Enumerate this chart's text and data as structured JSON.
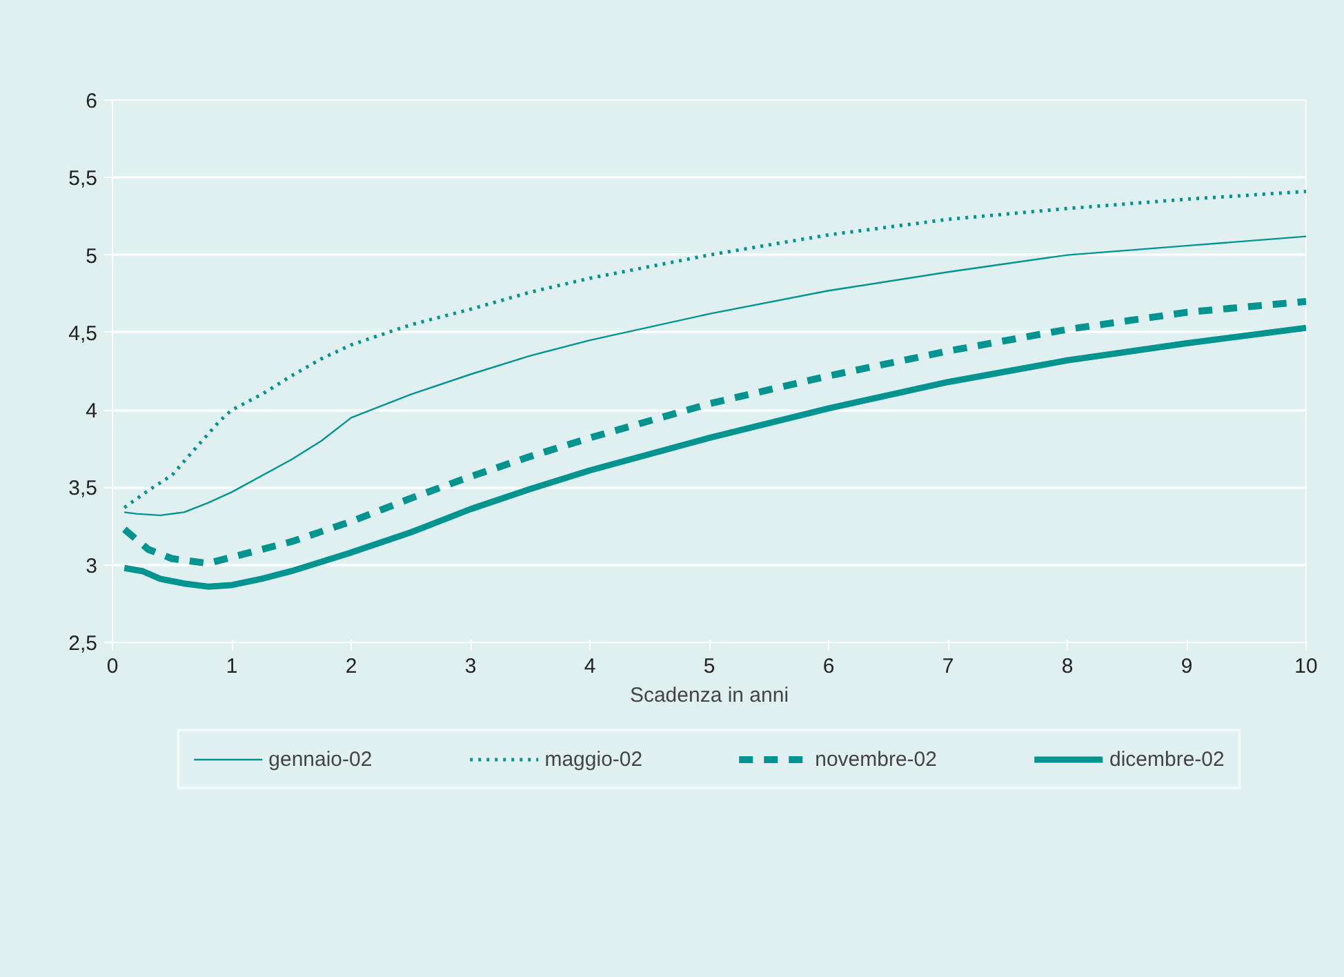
{
  "chart_data": {
    "type": "line",
    "xlabel": "Scadenza in anni",
    "xlim": [
      0,
      10
    ],
    "xticks": [
      0,
      1,
      2,
      3,
      4,
      5,
      6,
      7,
      8,
      9,
      10
    ],
    "ylim": [
      2.5,
      6
    ],
    "yticks": [
      {
        "value": 2.5,
        "label": "2,5"
      },
      3,
      {
        "value": 3.5,
        "label": "3,5"
      },
      4,
      {
        "value": 4.5,
        "label": "4,5"
      },
      5,
      {
        "value": 5.5,
        "label": "5,5"
      },
      6
    ],
    "grid": "y",
    "legend": "bottom",
    "series": [
      {
        "name": "gennaio-02",
        "color": "#009490",
        "line_style": "solid",
        "x": [
          0.1,
          0.2,
          0.4,
          0.6,
          0.8,
          1,
          1.5,
          1.75,
          2,
          2.5,
          3,
          3.5,
          4,
          5,
          6,
          7,
          8,
          9,
          10
        ],
        "values": [
          3.34,
          3.33,
          3.32,
          3.34,
          3.4,
          3.47,
          3.68,
          3.8,
          3.95,
          4.1,
          4.23,
          4.35,
          4.45,
          4.62,
          4.77,
          4.89,
          5.0,
          5.06,
          5.12
        ]
      },
      {
        "name": "maggio-02",
        "color": "#009490",
        "line_style": "dotted",
        "x": [
          0.1,
          0.3,
          0.5,
          0.75,
          0.9,
          1,
          1.25,
          1.5,
          1.75,
          2,
          2.5,
          3,
          3.5,
          4,
          5,
          6,
          7,
          8,
          9,
          10
        ],
        "values": [
          3.37,
          3.48,
          3.58,
          3.8,
          3.93,
          4.0,
          4.1,
          4.22,
          4.33,
          4.42,
          4.55,
          4.65,
          4.76,
          4.85,
          5.0,
          5.13,
          5.23,
          5.3,
          5.36,
          5.41
        ]
      },
      {
        "name": "novembre-02",
        "color": "#009490",
        "line_style": "dashed",
        "x": [
          0.1,
          0.3,
          0.5,
          0.8,
          1,
          1.5,
          2,
          2.5,
          3,
          3.5,
          4,
          5,
          6,
          7,
          8,
          9,
          10
        ],
        "values": [
          3.23,
          3.1,
          3.04,
          3.01,
          3.05,
          3.15,
          3.28,
          3.43,
          3.57,
          3.7,
          3.82,
          4.04,
          4.22,
          4.38,
          4.52,
          4.63,
          4.7
        ]
      },
      {
        "name": "dicembre-02",
        "color": "#009490",
        "line_style": "solid",
        "x": [
          0.1,
          0.25,
          0.4,
          0.6,
          0.8,
          1,
          1.25,
          1.5,
          1.75,
          2,
          2.5,
          3,
          3.5,
          4,
          5,
          6,
          7,
          8,
          9,
          10
        ],
        "values": [
          2.98,
          2.96,
          2.91,
          2.88,
          2.86,
          2.87,
          2.91,
          2.96,
          3.02,
          3.08,
          3.21,
          3.36,
          3.49,
          3.61,
          3.82,
          4.01,
          4.18,
          4.32,
          4.43,
          4.53
        ]
      }
    ]
  }
}
